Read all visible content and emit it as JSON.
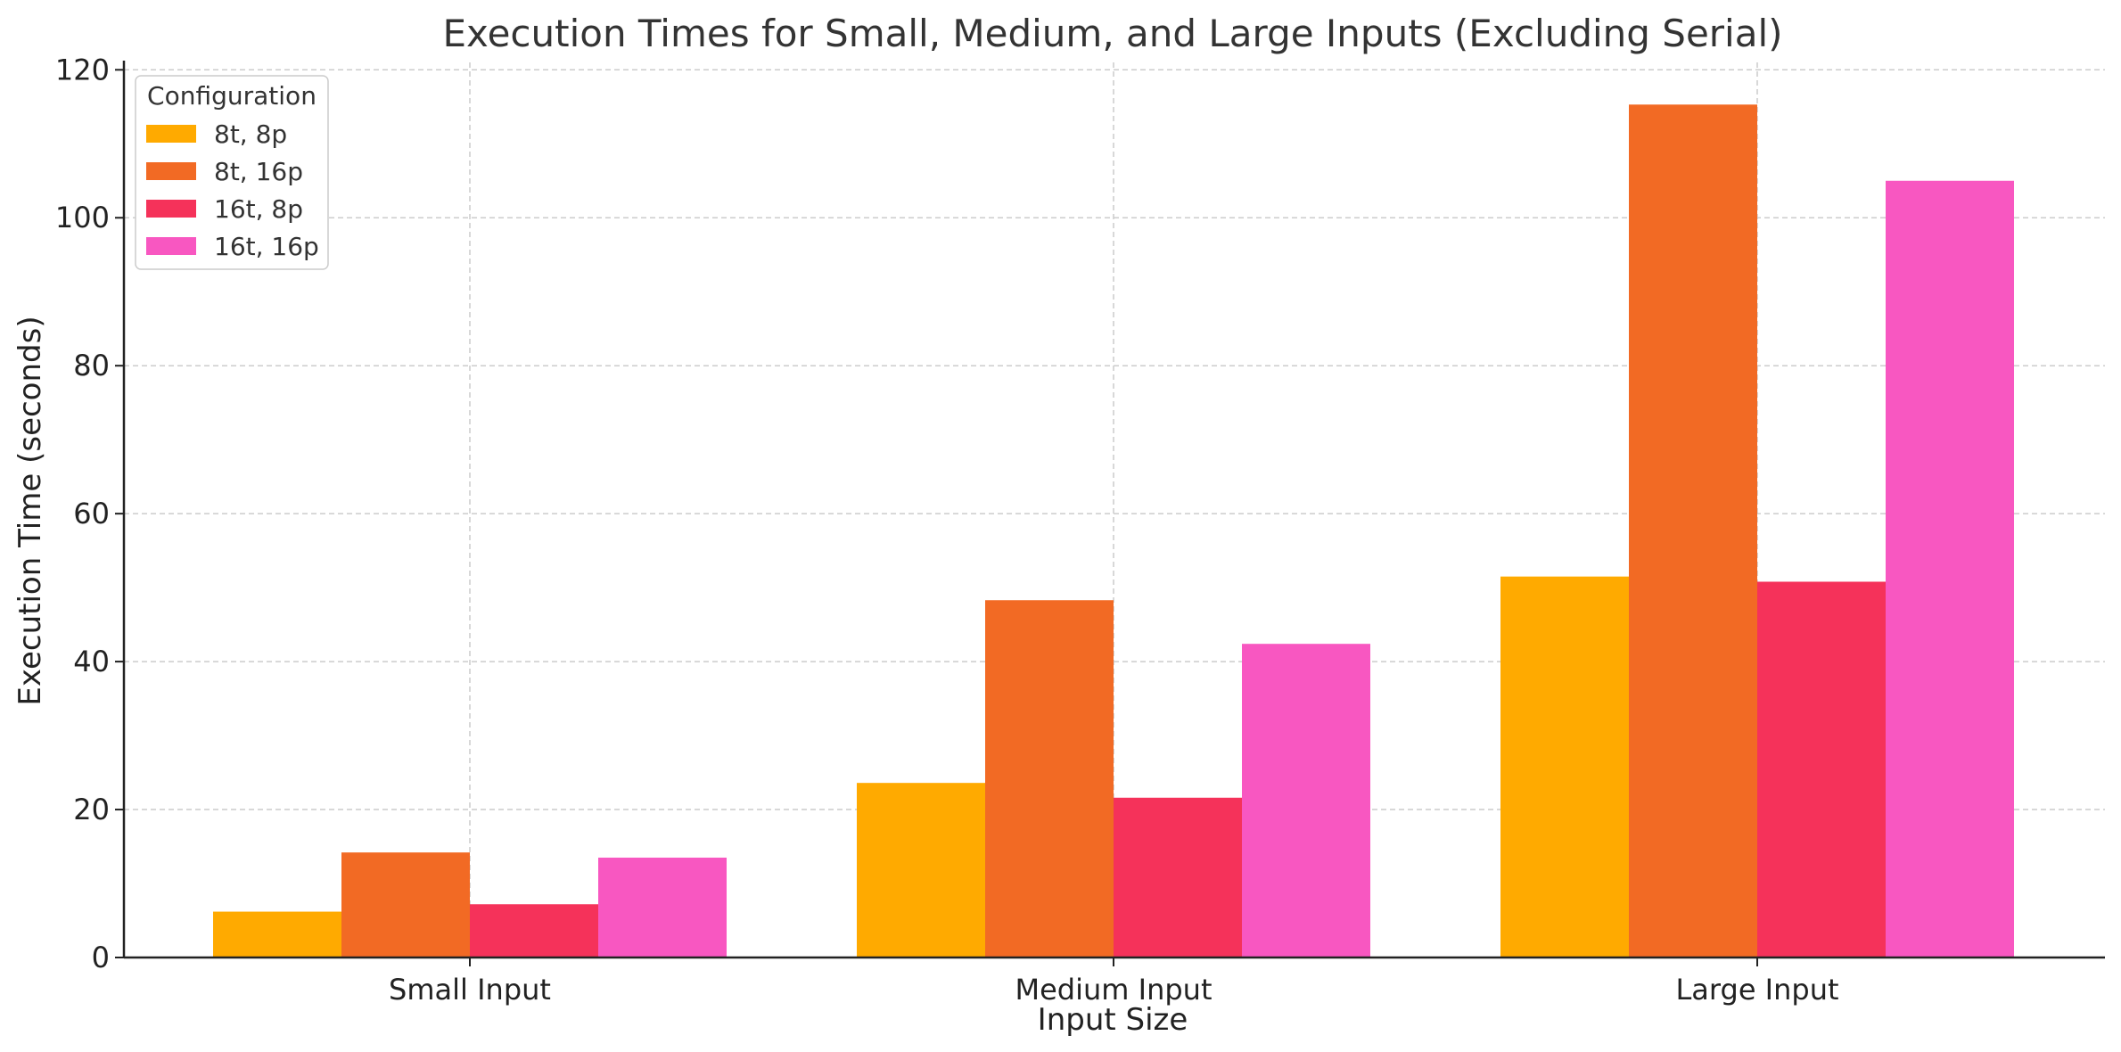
{
  "chart_data": {
    "type": "bar",
    "title": "Execution Times for Small, Medium, and Large Inputs (Excluding Serial)",
    "xlabel": "Input Size",
    "ylabel": "Execution Time (seconds)",
    "categories": [
      "Small Input",
      "Medium Input",
      "Large Input"
    ],
    "series": [
      {
        "name": "8t, 8p",
        "color": "#FFAA00",
        "values": [
          6.2,
          23.6,
          51.5
        ]
      },
      {
        "name": "8t, 16p",
        "color": "#F26A24",
        "values": [
          14.2,
          48.3,
          115.3
        ]
      },
      {
        "name": "16t, 8p",
        "color": "#F5325A",
        "values": [
          7.2,
          21.6,
          50.8
        ]
      },
      {
        "name": "16t, 16p",
        "color": "#F857C1",
        "values": [
          13.5,
          42.4,
          105.0
        ]
      }
    ],
    "ylim": [
      0,
      121
    ],
    "yticks": [
      0,
      20,
      40,
      60,
      80,
      100,
      120
    ],
    "grid": true,
    "legend": {
      "title": "Configuration",
      "placement": "top-left"
    }
  }
}
